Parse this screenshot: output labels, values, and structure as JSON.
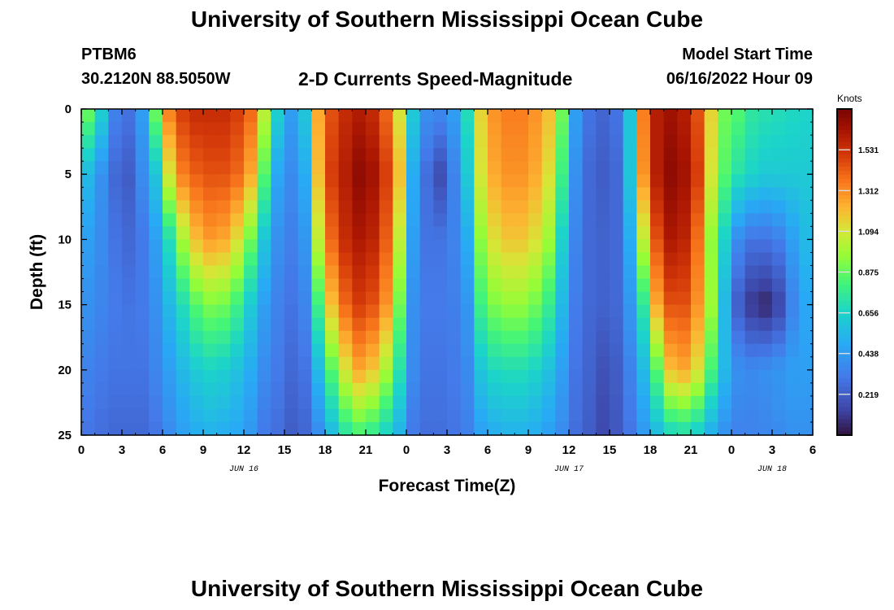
{
  "header": {
    "title": "University of Southern Mississippi Ocean Cube",
    "station": "PTBM6",
    "coords": "30.2120N  88.5050W",
    "chart_title": "2-D Currents Speed-Magnitude",
    "model_start_label": "Model Start Time",
    "model_start_value": "06/16/2022 Hour 09"
  },
  "footer": {
    "title": "University of Southern Mississippi Ocean Cube"
  },
  "chart_data": {
    "type": "heatmap",
    "title": "2-D Currents Speed-Magnitude",
    "xlabel": "Forecast Time(Z)",
    "ylabel": "Depth (ft)",
    "x_ticks": [
      "0",
      "3",
      "6",
      "9",
      "12",
      "15",
      "18",
      "21",
      "0",
      "3",
      "6",
      "9",
      "12",
      "15",
      "18",
      "21",
      "0",
      "3",
      "6"
    ],
    "x_range_hours": [
      0,
      54
    ],
    "date_labels": [
      {
        "label": "JUN 16",
        "hour": 12
      },
      {
        "label": "JUN 17",
        "hour": 36
      },
      {
        "label": "JUN 18",
        "hour": 51
      }
    ],
    "y_ticks": [
      0,
      5,
      10,
      15,
      20,
      25
    ],
    "ylim": [
      0,
      25
    ],
    "colorbar": {
      "title": "Knots",
      "ticks": [
        0.219,
        0.438,
        0.656,
        0.875,
        1.094,
        1.312,
        1.531
      ],
      "range": [
        0,
        1.75
      ]
    },
    "x_resolution_hours": 1,
    "y_resolution_ft": 1,
    "grid_profiles": {
      "description": "Approximate speed (knots) per hourly column at selected depths (ft); interpolated between depths",
      "depths": [
        0,
        5,
        10,
        15,
        20,
        25
      ],
      "columns": [
        [
          0.9,
          0.55,
          0.45,
          0.4,
          0.35,
          0.3
        ],
        [
          0.65,
          0.4,
          0.38,
          0.36,
          0.32,
          0.28
        ],
        [
          0.35,
          0.26,
          0.3,
          0.32,
          0.3,
          0.26
        ],
        [
          0.3,
          0.22,
          0.26,
          0.3,
          0.3,
          0.26
        ],
        [
          0.45,
          0.38,
          0.32,
          0.32,
          0.3,
          0.26
        ],
        [
          0.9,
          0.6,
          0.45,
          0.4,
          0.36,
          0.3
        ],
        [
          1.35,
          1.1,
          0.7,
          0.55,
          0.45,
          0.38
        ],
        [
          1.5,
          1.35,
          1.0,
          0.7,
          0.55,
          0.45
        ],
        [
          1.55,
          1.42,
          1.2,
          0.85,
          0.62,
          0.5
        ],
        [
          1.55,
          1.45,
          1.28,
          0.92,
          0.66,
          0.52
        ],
        [
          1.55,
          1.45,
          1.25,
          0.9,
          0.64,
          0.5
        ],
        [
          1.5,
          1.4,
          1.12,
          0.8,
          0.58,
          0.48
        ],
        [
          1.4,
          1.25,
          0.9,
          0.62,
          0.5,
          0.42
        ],
        [
          1.05,
          0.85,
          0.6,
          0.45,
          0.38,
          0.32
        ],
        [
          0.65,
          0.48,
          0.4,
          0.35,
          0.32,
          0.28
        ],
        [
          0.45,
          0.38,
          0.34,
          0.3,
          0.26,
          0.22
        ],
        [
          0.6,
          0.5,
          0.42,
          0.36,
          0.3,
          0.25
        ],
        [
          1.25,
          1.2,
          1.05,
          0.8,
          0.55,
          0.38
        ],
        [
          1.45,
          1.5,
          1.4,
          1.2,
          0.85,
          0.55
        ],
        [
          1.55,
          1.6,
          1.55,
          1.4,
          1.1,
          0.72
        ],
        [
          1.6,
          1.7,
          1.62,
          1.5,
          1.25,
          0.8
        ],
        [
          1.55,
          1.65,
          1.58,
          1.45,
          1.18,
          0.75
        ],
        [
          1.4,
          1.5,
          1.42,
          1.3,
          1.0,
          0.65
        ],
        [
          1.1,
          1.2,
          1.05,
          0.9,
          0.72,
          0.52
        ],
        [
          0.62,
          0.5,
          0.45,
          0.4,
          0.38,
          0.32
        ],
        [
          0.4,
          0.28,
          0.3,
          0.32,
          0.3,
          0.28
        ],
        [
          0.38,
          0.16,
          0.3,
          0.32,
          0.3,
          0.28
        ],
        [
          0.45,
          0.35,
          0.35,
          0.34,
          0.32,
          0.3
        ],
        [
          0.7,
          0.62,
          0.5,
          0.42,
          0.38,
          0.34
        ],
        [
          1.15,
          1.1,
          0.95,
          0.8,
          0.6,
          0.45
        ],
        [
          1.3,
          1.25,
          1.12,
          0.92,
          0.68,
          0.5
        ],
        [
          1.35,
          1.3,
          1.18,
          0.96,
          0.7,
          0.52
        ],
        [
          1.35,
          1.3,
          1.18,
          0.96,
          0.7,
          0.52
        ],
        [
          1.3,
          1.25,
          1.12,
          0.9,
          0.66,
          0.5
        ],
        [
          1.2,
          1.12,
          0.98,
          0.78,
          0.58,
          0.45
        ],
        [
          0.9,
          0.8,
          0.65,
          0.55,
          0.45,
          0.38
        ],
        [
          0.45,
          0.4,
          0.36,
          0.33,
          0.3,
          0.28
        ],
        [
          0.3,
          0.26,
          0.26,
          0.26,
          0.24,
          0.22
        ],
        [
          0.25,
          0.22,
          0.24,
          0.24,
          0.18,
          0.15
        ],
        [
          0.3,
          0.26,
          0.26,
          0.26,
          0.22,
          0.2
        ],
        [
          0.6,
          0.6,
          0.5,
          0.42,
          0.35,
          0.3
        ],
        [
          1.35,
          1.3,
          1.05,
          0.75,
          0.55,
          0.42
        ],
        [
          1.6,
          1.6,
          1.45,
          1.25,
          0.85,
          0.55
        ],
        [
          1.65,
          1.7,
          1.62,
          1.45,
          1.2,
          0.65
        ],
        [
          1.6,
          1.65,
          1.58,
          1.45,
          1.25,
          0.68
        ],
        [
          1.45,
          1.5,
          1.38,
          1.3,
          1.12,
          0.62
        ],
        [
          1.15,
          1.1,
          0.95,
          0.98,
          0.82,
          0.5
        ],
        [
          0.9,
          0.85,
          0.65,
          0.55,
          0.55,
          0.4
        ],
        [
          0.85,
          0.72,
          0.38,
          0.22,
          0.4,
          0.35
        ],
        [
          0.75,
          0.66,
          0.3,
          0.1,
          0.38,
          0.35
        ],
        [
          0.72,
          0.62,
          0.3,
          0.06,
          0.4,
          0.36
        ],
        [
          0.7,
          0.62,
          0.34,
          0.14,
          0.42,
          0.38
        ],
        [
          0.68,
          0.62,
          0.45,
          0.35,
          0.45,
          0.4
        ],
        [
          0.66,
          0.62,
          0.55,
          0.48,
          0.45,
          0.4
        ],
        [
          0.66,
          0.62,
          0.55,
          0.48,
          0.45,
          0.4
        ]
      ]
    }
  }
}
